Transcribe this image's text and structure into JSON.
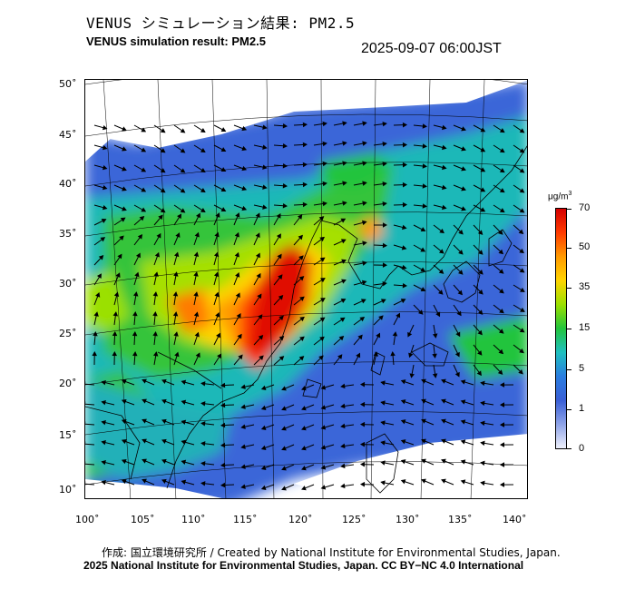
{
  "header": {
    "title_jp": "VENUS シミュレーション結果: PM2.5",
    "title_en": "VENUS simulation result: PM2.5",
    "datetime": "2025-09-07 06:00JST"
  },
  "map": {
    "lat_labels": [
      "50˚",
      "45˚",
      "40˚",
      "35˚",
      "30˚",
      "25˚",
      "20˚",
      "15˚",
      "10˚"
    ],
    "lon_labels": [
      "100˚",
      "105˚",
      "110˚",
      "115˚",
      "120˚",
      "125˚",
      "130˚",
      "135˚",
      "140˚"
    ],
    "variable": "PM2.5",
    "high_concentration_region": "North China Plain / East China",
    "wind_vectors": "shown as arrows"
  },
  "colorbar": {
    "unit_main": "μg/m",
    "unit_sup": "3",
    "labels": [
      "70",
      "50",
      "35",
      "15",
      "5",
      "1",
      "0"
    ],
    "colors": [
      "#d40000",
      "#ff3b00",
      "#ff9a00",
      "#ffd400",
      "#9be000",
      "#22c43c",
      "#1fc0c0",
      "#2a7de0",
      "#3a5fd6",
      "#8fa4e8",
      "#eef0fb"
    ]
  },
  "credits": {
    "line1": "作成: 国立環境研究所 / Created by National Institute for Environmental Studies, Japan.",
    "line2": "2025 National Institute for Environmental Studies, Japan. CC BY−NC 4.0 International"
  }
}
